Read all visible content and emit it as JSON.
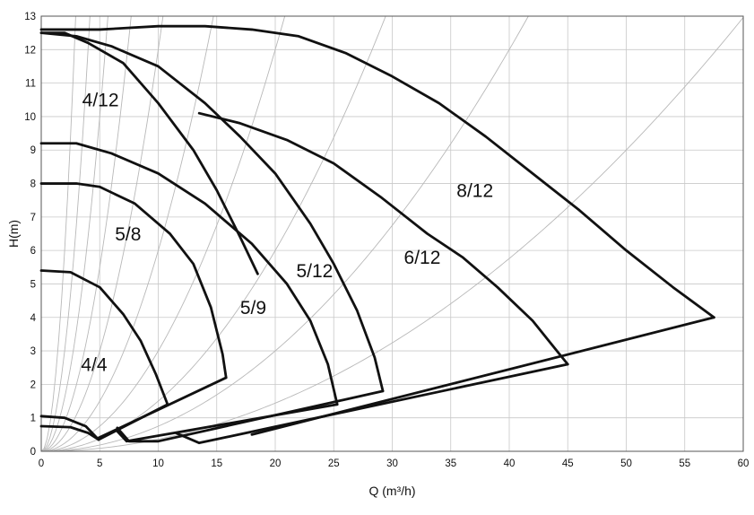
{
  "chart_data": {
    "type": "line",
    "xlabel": "Q (m³/h)",
    "ylabel": "H(m)",
    "xlim": [
      0,
      60
    ],
    "ylim": [
      0,
      13
    ],
    "xticks": [
      "0",
      "5",
      "10",
      "15",
      "20",
      "25",
      "30",
      "35",
      "40",
      "45",
      "50",
      "55",
      "60"
    ],
    "yticks": [
      "0",
      "1",
      "2",
      "3",
      "4",
      "5",
      "6",
      "7",
      "8",
      "9",
      "10",
      "11",
      "12",
      "13"
    ],
    "grid": true,
    "colors": {
      "curve": "#111111",
      "grid": "#c8c8c8",
      "system_curve": "#b8b8b8"
    },
    "series": [
      {
        "name": "4/4",
        "label_at": [
          3.4,
          2.4
        ],
        "points": [
          [
            0,
            5.4
          ],
          [
            2.5,
            5.35
          ],
          [
            5,
            4.9
          ],
          [
            7,
            4.1
          ],
          [
            8.5,
            3.3
          ],
          [
            9.8,
            2.3
          ],
          [
            10.8,
            1.4
          ]
        ]
      },
      {
        "name": "5/8",
        "label_at": [
          6.3,
          6.3
        ],
        "points": [
          [
            0,
            8.0
          ],
          [
            3,
            8.0
          ],
          [
            5,
            7.9
          ],
          [
            8,
            7.4
          ],
          [
            11,
            6.5
          ],
          [
            13,
            5.6
          ],
          [
            14.5,
            4.3
          ],
          [
            15.5,
            2.9
          ],
          [
            15.8,
            2.2
          ]
        ]
      },
      {
        "name": "5/9",
        "label_at": [
          17,
          4.1
        ],
        "points": [
          [
            0,
            9.2
          ],
          [
            3,
            9.2
          ],
          [
            6,
            8.9
          ],
          [
            10,
            8.3
          ],
          [
            14,
            7.4
          ],
          [
            18,
            6.2
          ],
          [
            21,
            5.0
          ],
          [
            23,
            3.9
          ],
          [
            24.5,
            2.6
          ],
          [
            25.3,
            1.4
          ]
        ]
      },
      {
        "name": "4/12",
        "label_at": [
          3.5,
          10.3
        ],
        "points": [
          [
            0,
            12.5
          ],
          [
            2,
            12.5
          ],
          [
            4,
            12.2
          ],
          [
            7,
            11.6
          ],
          [
            10,
            10.4
          ],
          [
            13,
            9.0
          ],
          [
            15,
            7.8
          ],
          [
            17,
            6.4
          ],
          [
            18.5,
            5.3
          ]
        ]
      },
      {
        "name": "5/12",
        "label_at": [
          21.8,
          5.2
        ],
        "points": [
          [
            0,
            12.5
          ],
          [
            3,
            12.4
          ],
          [
            6,
            12.1
          ],
          [
            10,
            11.5
          ],
          [
            14,
            10.4
          ],
          [
            17,
            9.4
          ],
          [
            20,
            8.3
          ],
          [
            23,
            6.8
          ],
          [
            25,
            5.6
          ],
          [
            27,
            4.2
          ],
          [
            28.5,
            2.8
          ],
          [
            29.2,
            1.8
          ]
        ]
      },
      {
        "name": "6/12",
        "label_at": [
          31,
          5.6
        ],
        "points": [
          [
            13.5,
            10.1
          ],
          [
            17,
            9.8
          ],
          [
            21,
            9.3
          ],
          [
            25,
            8.6
          ],
          [
            29,
            7.6
          ],
          [
            33,
            6.5
          ],
          [
            36,
            5.8
          ],
          [
            39,
            4.9
          ],
          [
            42,
            3.9
          ],
          [
            44.3,
            2.9
          ],
          [
            45,
            2.6
          ]
        ]
      },
      {
        "name": "8/12",
        "label_at": [
          35.5,
          7.6
        ],
        "points": [
          [
            0,
            12.6
          ],
          [
            5,
            12.6
          ],
          [
            10,
            12.7
          ],
          [
            14,
            12.7
          ],
          [
            18,
            12.6
          ],
          [
            22,
            12.4
          ],
          [
            26,
            11.9
          ],
          [
            30,
            11.2
          ],
          [
            34,
            10.4
          ],
          [
            38,
            9.4
          ],
          [
            42,
            8.3
          ],
          [
            46,
            7.2
          ],
          [
            50,
            6.0
          ],
          [
            54,
            4.9
          ],
          [
            57.5,
            4.0
          ]
        ]
      }
    ],
    "boundary_lines": [
      {
        "name": "",
        "points": [
          [
            57.5,
            4.0
          ],
          [
            18,
            0.5
          ]
        ]
      },
      {
        "name": "",
        "points": [
          [
            45,
            2.6
          ],
          [
            13.5,
            0.25
          ],
          [
            11.5,
            0.55
          ]
        ]
      },
      {
        "name": "",
        "points": [
          [
            29.2,
            1.8
          ],
          [
            10,
            0.3
          ],
          [
            7.5,
            0.3
          ],
          [
            6.5,
            0.7
          ]
        ]
      },
      {
        "name": "",
        "points": [
          [
            25.3,
            1.4
          ],
          [
            7.3,
            0.3
          ],
          [
            6.5,
            0.6
          ]
        ]
      },
      {
        "name": "",
        "points": [
          [
            15.8,
            2.2
          ],
          [
            4.9,
            0.4
          ]
        ]
      },
      {
        "name": "",
        "points": [
          [
            10.8,
            1.4
          ],
          [
            4.9,
            0.35
          ]
        ]
      },
      {
        "name": "",
        "points": [
          [
            0,
            1.05
          ],
          [
            2,
            1.0
          ],
          [
            3.8,
            0.75
          ],
          [
            4.9,
            0.35
          ]
        ]
      },
      {
        "name": "",
        "points": [
          [
            0,
            0.75
          ],
          [
            2.5,
            0.72
          ],
          [
            4,
            0.55
          ],
          [
            4.9,
            0.35
          ]
        ]
      }
    ],
    "system_curves_k": [
      1.5,
      0.75,
      0.4,
      0.22,
      0.12,
      0.06,
      0.03,
      0.015,
      0.0075,
      0.0036
    ]
  }
}
